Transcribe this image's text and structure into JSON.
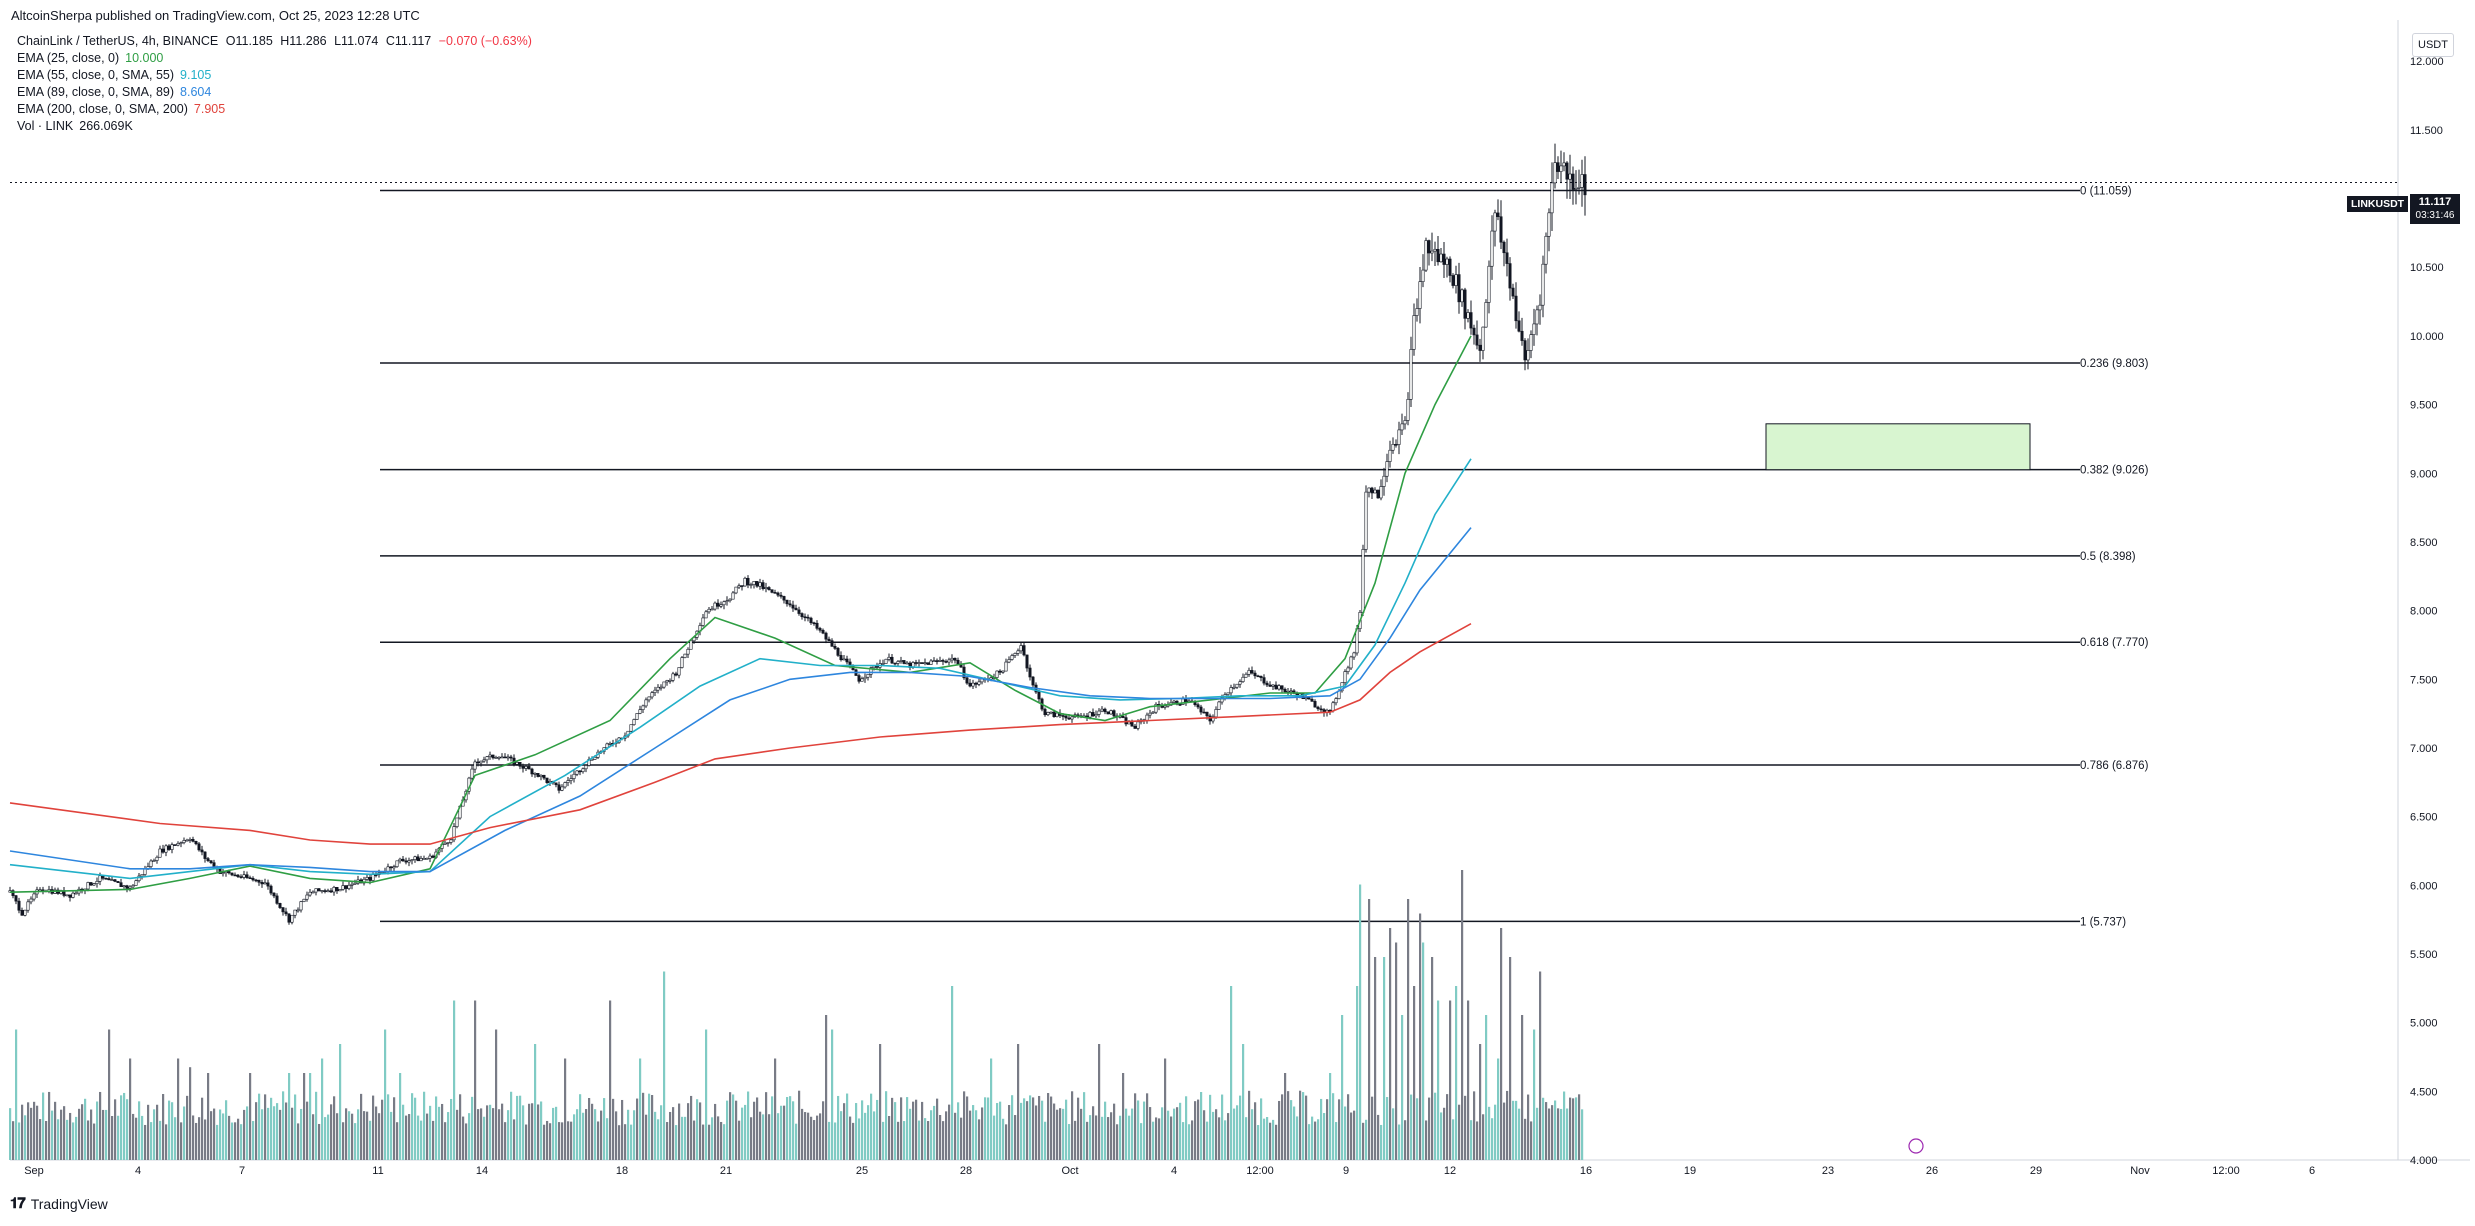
{
  "header": {
    "published_by": "AltcoinSherpa published on TradingView.com, Oct 25, 2023 12:28 UTC"
  },
  "legend": {
    "symbol": "ChainLink / TetherUS, 4h, BINANCE",
    "open": "O11.185",
    "high": "H11.286",
    "low": "L11.074",
    "close": "C11.117",
    "change": "−0.070 (−0.63%)",
    "change_color": "#f23645",
    "indicators": [
      {
        "label": "EMA (25, close, 0)",
        "value": "10.000",
        "color": "#2f9e44"
      },
      {
        "label": "EMA (55, close, 0, SMA, 55)",
        "value": "9.105",
        "color": "#22b0c9"
      },
      {
        "label": "EMA (89, close, 0, SMA, 89)",
        "value": "8.604",
        "color": "#2e86de"
      },
      {
        "label": "EMA (200, close, 0, SMA, 200)",
        "value": "7.905",
        "color": "#e0433c"
      },
      {
        "label": "Vol · LINK",
        "value": "266.069K",
        "color": "#131722"
      }
    ]
  },
  "price_scale": {
    "currency": "USDT",
    "symbol_tag": "LINKUSDT",
    "last_price": "11.117",
    "countdown": "03:31:46"
  },
  "footer": {
    "brand": "TradingView"
  },
  "chart_data": {
    "type": "candlestick",
    "timeframe": "4h",
    "x_axis": {
      "tick_labels": [
        "Sep",
        "4",
        "7",
        "11",
        "14",
        "18",
        "21",
        "25",
        "28",
        "Oct",
        "4",
        "12:00",
        "9",
        "12",
        "16",
        "19",
        "23",
        "26",
        "29",
        "Nov",
        "12:00",
        "6"
      ]
    },
    "y_axis": {
      "range": [
        4.0,
        12.3
      ],
      "tick_labels": [
        "12.000",
        "11.500",
        "11.000",
        "10.500",
        "10.000",
        "9.500",
        "9.000",
        "8.500",
        "8.000",
        "7.500",
        "7.000",
        "6.500",
        "6.000",
        "5.500",
        "5.000",
        "4.500",
        "4.000"
      ]
    },
    "last_price": 11.117,
    "fib_levels": [
      {
        "label": "0 (11.059)",
        "value": 11.059
      },
      {
        "label": "0.236 (9.803)",
        "value": 9.803
      },
      {
        "label": "0.382 (9.026)",
        "value": 9.026
      },
      {
        "label": "0.5 (8.398)",
        "value": 8.398
      },
      {
        "label": "0.618 (7.770)",
        "value": 7.77
      },
      {
        "label": "0.786 (6.876)",
        "value": 6.876
      },
      {
        "label": "1 (5.737)",
        "value": 5.737
      }
    ],
    "zone": {
      "low": 9.026,
      "high": 9.36,
      "color": "#d8f5d0"
    },
    "colors": {
      "up": "#26a69a",
      "down": "#131722",
      "vol_up": "#80cbc4",
      "vol_down": "#787b86"
    },
    "ema_series": [
      {
        "name": "EMA 25",
        "color": "#2f9e44",
        "points": [
          [
            0,
            5.95
          ],
          [
            40,
            5.97
          ],
          [
            60,
            6.05
          ],
          [
            80,
            6.14
          ],
          [
            100,
            6.05
          ],
          [
            120,
            6.02
          ],
          [
            140,
            6.12
          ],
          [
            155,
            6.8
          ],
          [
            175,
            6.95
          ],
          [
            200,
            7.2
          ],
          [
            220,
            7.65
          ],
          [
            235,
            7.95
          ],
          [
            255,
            7.8
          ],
          [
            275,
            7.6
          ],
          [
            300,
            7.55
          ],
          [
            320,
            7.62
          ],
          [
            335,
            7.42
          ],
          [
            350,
            7.25
          ],
          [
            365,
            7.2
          ],
          [
            380,
            7.3
          ],
          [
            400,
            7.35
          ],
          [
            420,
            7.4
          ],
          [
            435,
            7.4
          ],
          [
            445,
            7.65
          ],
          [
            455,
            8.2
          ],
          [
            465,
            9.0
          ],
          [
            475,
            9.5
          ],
          [
            487,
            10.0
          ]
        ]
      },
      {
        "name": "EMA 55",
        "color": "#22b0c9",
        "points": [
          [
            0,
            6.15
          ],
          [
            40,
            6.05
          ],
          [
            60,
            6.1
          ],
          [
            80,
            6.15
          ],
          [
            100,
            6.1
          ],
          [
            120,
            6.08
          ],
          [
            140,
            6.1
          ],
          [
            160,
            6.5
          ],
          [
            185,
            6.8
          ],
          [
            210,
            7.15
          ],
          [
            230,
            7.45
          ],
          [
            250,
            7.65
          ],
          [
            270,
            7.6
          ],
          [
            290,
            7.6
          ],
          [
            310,
            7.58
          ],
          [
            330,
            7.48
          ],
          [
            350,
            7.38
          ],
          [
            370,
            7.35
          ],
          [
            390,
            7.36
          ],
          [
            410,
            7.38
          ],
          [
            430,
            7.38
          ],
          [
            445,
            7.45
          ],
          [
            455,
            7.75
          ],
          [
            465,
            8.2
          ],
          [
            475,
            8.7
          ],
          [
            487,
            9.105
          ]
        ]
      },
      {
        "name": "EMA 89",
        "color": "#2e86de",
        "points": [
          [
            0,
            6.25
          ],
          [
            40,
            6.12
          ],
          [
            60,
            6.12
          ],
          [
            80,
            6.15
          ],
          [
            100,
            6.13
          ],
          [
            120,
            6.1
          ],
          [
            140,
            6.1
          ],
          [
            165,
            6.4
          ],
          [
            190,
            6.65
          ],
          [
            215,
            7.0
          ],
          [
            240,
            7.35
          ],
          [
            260,
            7.5
          ],
          [
            280,
            7.55
          ],
          [
            300,
            7.55
          ],
          [
            320,
            7.52
          ],
          [
            340,
            7.44
          ],
          [
            360,
            7.38
          ],
          [
            380,
            7.36
          ],
          [
            400,
            7.36
          ],
          [
            420,
            7.36
          ],
          [
            440,
            7.38
          ],
          [
            450,
            7.5
          ],
          [
            460,
            7.8
          ],
          [
            470,
            8.15
          ],
          [
            487,
            8.604
          ]
        ]
      },
      {
        "name": "EMA 200",
        "color": "#e0433c",
        "points": [
          [
            0,
            6.6
          ],
          [
            50,
            6.45
          ],
          [
            80,
            6.4
          ],
          [
            100,
            6.33
          ],
          [
            120,
            6.3
          ],
          [
            140,
            6.3
          ],
          [
            160,
            6.42
          ],
          [
            190,
            6.55
          ],
          [
            215,
            6.75
          ],
          [
            235,
            6.92
          ],
          [
            260,
            7.0
          ],
          [
            290,
            7.08
          ],
          [
            320,
            7.13
          ],
          [
            350,
            7.17
          ],
          [
            380,
            7.2
          ],
          [
            410,
            7.23
          ],
          [
            440,
            7.26
          ],
          [
            450,
            7.35
          ],
          [
            460,
            7.55
          ],
          [
            470,
            7.7
          ],
          [
            487,
            7.905
          ]
        ]
      }
    ],
    "candle_path": [
      [
        0,
        5.95
      ],
      [
        4,
        5.8
      ],
      [
        10,
        5.98
      ],
      [
        20,
        5.93
      ],
      [
        30,
        6.05
      ],
      [
        40,
        5.98
      ],
      [
        50,
        6.25
      ],
      [
        60,
        6.35
      ],
      [
        65,
        6.2
      ],
      [
        70,
        6.1
      ],
      [
        85,
        6.02
      ],
      [
        93,
        5.75
      ],
      [
        100,
        5.95
      ],
      [
        110,
        5.98
      ],
      [
        120,
        6.05
      ],
      [
        130,
        6.18
      ],
      [
        140,
        6.2
      ],
      [
        147,
        6.35
      ],
      [
        155,
        6.9
      ],
      [
        163,
        6.95
      ],
      [
        175,
        6.82
      ],
      [
        183,
        6.7
      ],
      [
        195,
        6.95
      ],
      [
        205,
        7.1
      ],
      [
        212,
        7.35
      ],
      [
        222,
        7.55
      ],
      [
        232,
        8.0
      ],
      [
        240,
        8.1
      ],
      [
        245,
        8.22
      ],
      [
        250,
        8.18
      ],
      [
        260,
        8.05
      ],
      [
        270,
        7.85
      ],
      [
        283,
        7.5
      ],
      [
        292,
        7.65
      ],
      [
        300,
        7.6
      ],
      [
        315,
        7.65
      ],
      [
        320,
        7.45
      ],
      [
        330,
        7.55
      ],
      [
        337,
        7.75
      ],
      [
        341,
        7.45
      ],
      [
        345,
        7.25
      ],
      [
        356,
        7.22
      ],
      [
        365,
        7.28
      ],
      [
        375,
        7.15
      ],
      [
        382,
        7.3
      ],
      [
        393,
        7.35
      ],
      [
        400,
        7.2
      ],
      [
        405,
        7.4
      ],
      [
        413,
        7.55
      ],
      [
        421,
        7.45
      ],
      [
        430,
        7.38
      ],
      [
        440,
        7.25
      ],
      [
        445,
        7.55
      ],
      [
        448,
        7.7
      ],
      [
        450,
        8.0
      ],
      [
        452,
        8.9
      ],
      [
        456,
        8.85
      ],
      [
        460,
        9.2
      ],
      [
        465,
        9.35
      ],
      [
        468,
        10.1
      ],
      [
        472,
        10.65
      ],
      [
        480,
        10.5
      ],
      [
        485,
        10.2
      ],
      [
        490,
        9.9
      ],
      [
        495,
        10.9
      ],
      [
        500,
        10.4
      ],
      [
        505,
        9.8
      ],
      [
        510,
        10.3
      ],
      [
        515,
        11.3
      ],
      [
        520,
        11.15
      ],
      [
        525,
        11.117
      ]
    ],
    "volume_baseline": 0.12,
    "volume_bursts": [
      [
        2,
        0.45
      ],
      [
        33,
        0.45
      ],
      [
        40,
        0.35
      ],
      [
        56,
        0.35
      ],
      [
        60,
        0.32
      ],
      [
        66,
        0.3
      ],
      [
        80,
        0.3
      ],
      [
        93,
        0.3
      ],
      [
        98,
        0.3
      ],
      [
        100,
        0.3
      ],
      [
        104,
        0.35
      ],
      [
        110,
        0.4
      ],
      [
        125,
        0.45
      ],
      [
        130,
        0.3
      ],
      [
        148,
        0.55
      ],
      [
        155,
        0.55
      ],
      [
        162,
        0.45
      ],
      [
        175,
        0.4
      ],
      [
        185,
        0.35
      ],
      [
        200,
        0.55
      ],
      [
        210,
        0.35
      ],
      [
        218,
        0.65
      ],
      [
        232,
        0.45
      ],
      [
        255,
        0.35
      ],
      [
        272,
        0.5
      ],
      [
        274,
        0.45
      ],
      [
        290,
        0.4
      ],
      [
        314,
        0.6
      ],
      [
        327,
        0.35
      ],
      [
        336,
        0.4
      ],
      [
        363,
        0.4
      ],
      [
        371,
        0.3
      ],
      [
        385,
        0.35
      ],
      [
        407,
        0.6
      ],
      [
        411,
        0.4
      ],
      [
        425,
        0.3
      ],
      [
        440,
        0.3
      ],
      [
        444,
        0.5
      ],
      [
        449,
        0.6
      ],
      [
        450,
        0.95
      ],
      [
        453,
        0.9
      ],
      [
        455,
        0.7
      ],
      [
        458,
        0.7
      ],
      [
        460,
        0.8
      ],
      [
        462,
        0.75
      ],
      [
        464,
        0.5
      ],
      [
        466,
        0.9
      ],
      [
        468,
        0.6
      ],
      [
        470,
        0.85
      ],
      [
        471,
        0.75
      ],
      [
        474,
        0.7
      ],
      [
        476,
        0.55
      ],
      [
        480,
        0.55
      ],
      [
        482,
        0.6
      ],
      [
        484,
        1.0
      ],
      [
        486,
        0.55
      ],
      [
        490,
        0.4
      ],
      [
        492,
        0.5
      ],
      [
        496,
        0.35
      ],
      [
        497,
        0.8
      ],
      [
        500,
        0.7
      ],
      [
        504,
        0.5
      ],
      [
        508,
        0.45
      ],
      [
        510,
        0.65
      ]
    ],
    "title": "",
    "xlabel": "",
    "ylabel": ""
  }
}
